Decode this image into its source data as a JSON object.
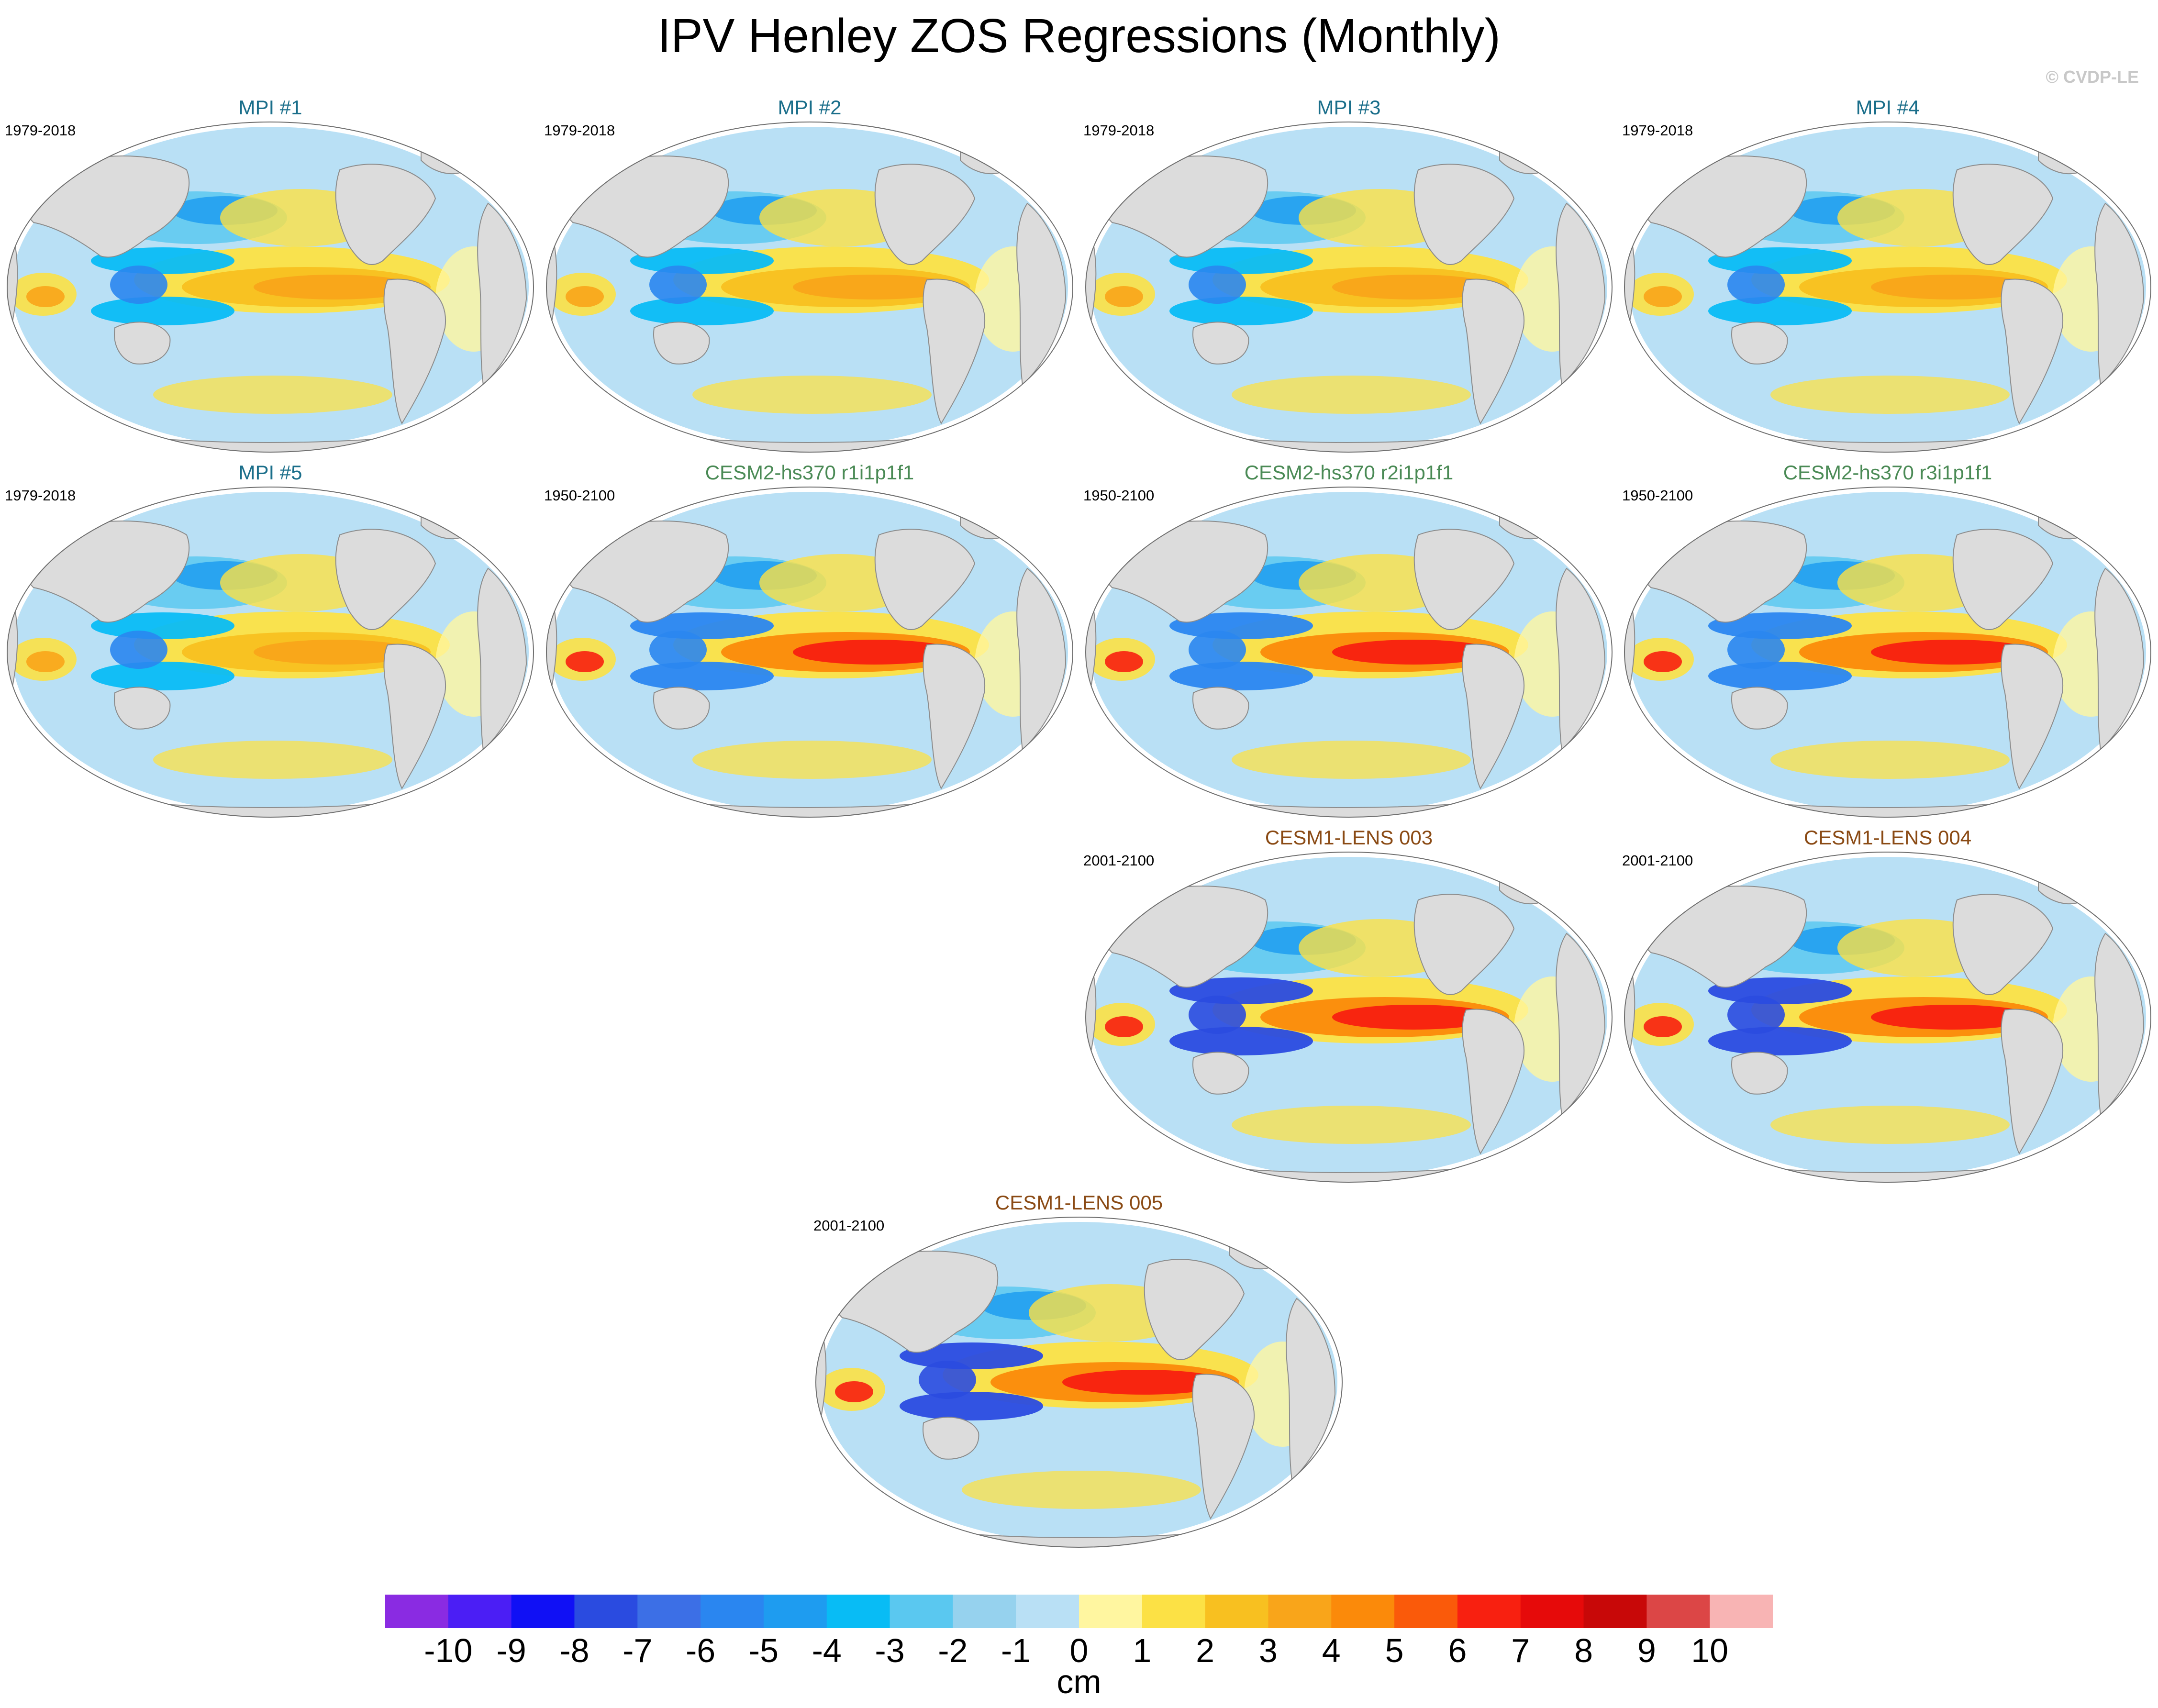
{
  "title": "IPV Henley ZOS Regressions (Monthly)",
  "watermark": "© CVDP-LE",
  "colors": {
    "mpi_title": "#1a6e8a",
    "cesm2_title": "#4a8a55",
    "cesm1_title": "#8a4a14",
    "land": "#dcdcdc",
    "coast": "#8c8c8c"
  },
  "panels": [
    {
      "title": "MPI #1",
      "period": "1979-2018",
      "group": "mpi"
    },
    {
      "title": "MPI #2",
      "period": "1979-2018",
      "group": "mpi"
    },
    {
      "title": "MPI #3",
      "period": "1979-2018",
      "group": "mpi"
    },
    {
      "title": "MPI #4",
      "period": "1979-2018",
      "group": "mpi"
    },
    {
      "title": "MPI #5",
      "period": "1979-2018",
      "group": "mpi"
    },
    {
      "title": "CESM2-hs370 r1i1p1f1",
      "period": "1950-2100",
      "group": "cesm2"
    },
    {
      "title": "CESM2-hs370 r2i1p1f1",
      "period": "1950-2100",
      "group": "cesm2"
    },
    {
      "title": "CESM2-hs370 r3i1p1f1",
      "period": "1950-2100",
      "group": "cesm2"
    },
    {
      "title": "CESM1-LENS 003",
      "period": "2001-2100",
      "group": "cesm1"
    },
    {
      "title": "CESM1-LENS 004",
      "period": "2001-2100",
      "group": "cesm1"
    },
    {
      "title": "CESM1-LENS 005",
      "period": "2001-2100",
      "group": "cesm1"
    }
  ],
  "colorbar": {
    "ticks": [
      "-10",
      "-9",
      "-8",
      "-7",
      "-6",
      "-5",
      "-4",
      "-3",
      "-2",
      "-1",
      "0",
      "1",
      "2",
      "3",
      "4",
      "5",
      "6",
      "7",
      "8",
      "9",
      "10"
    ],
    "colors": [
      "#8a2be2",
      "#4b1ef5",
      "#1010f5",
      "#2a4be0",
      "#3c6fe6",
      "#2a86f0",
      "#1e9cf0",
      "#08bcf5",
      "#5ac8f0",
      "#96d2ee",
      "#b9e0f5",
      "#fff6a0",
      "#fce145",
      "#f8c020",
      "#f9a51a",
      "#fb8a0a",
      "#fa5a0a",
      "#f82010",
      "#e60a0a",
      "#c80808",
      "#dc4646",
      "#f8b4b4"
    ],
    "unit": "cm"
  }
}
